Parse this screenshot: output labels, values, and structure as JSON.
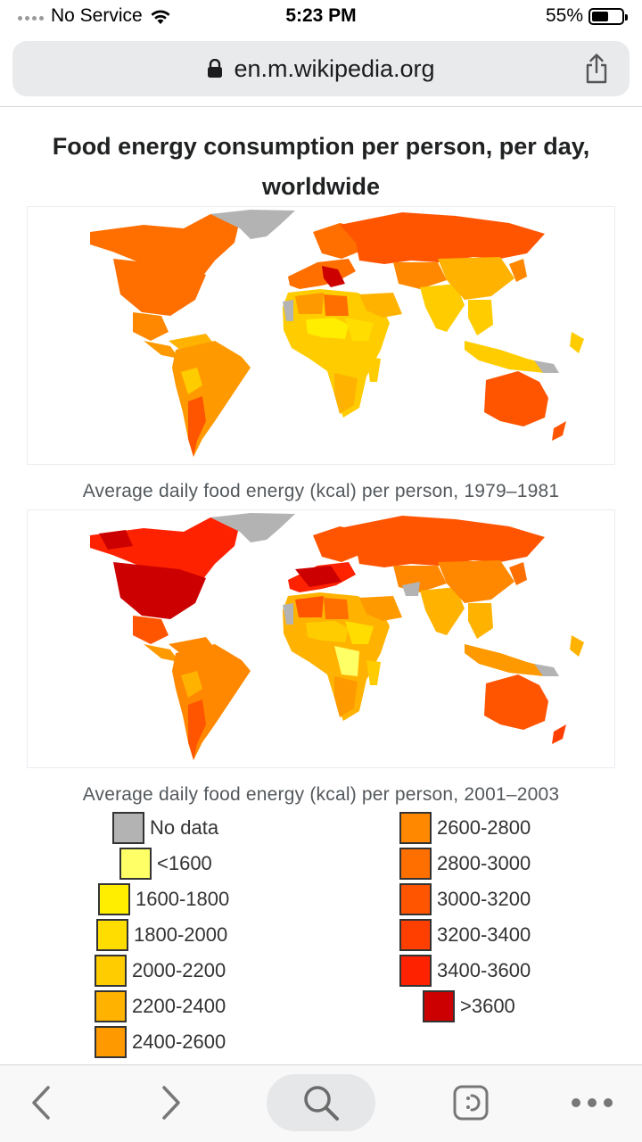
{
  "status_bar": {
    "carrier": "No Service",
    "time": "5:23 PM",
    "battery": "55%",
    "battery_level": 0.55
  },
  "browser": {
    "url": "en.m.wikipedia.org",
    "icons": {
      "lock": "lock-icon",
      "share": "share-icon",
      "back": "back-chevron-icon",
      "forward": "forward-chevron-icon",
      "search": "search-icon",
      "reader": "reader-mode-icon",
      "more": "more-dots-icon"
    }
  },
  "page": {
    "title": "Food energy consumption per person, per day, worldwide",
    "maps": [
      {
        "caption": "Average daily food energy (kcal) per person, 1979–1981"
      },
      {
        "caption": "Average daily food energy (kcal) per person, 2001–2003"
      }
    ]
  },
  "legend": {
    "left": [
      {
        "label": "No data",
        "color": "#b3b3b3"
      },
      {
        "label": "<1600",
        "color": "#ffff66"
      },
      {
        "label": "1600-1800",
        "color": "#ffee00"
      },
      {
        "label": "1800-2000",
        "color": "#ffdd00"
      },
      {
        "label": "2000-2200",
        "color": "#ffcc00"
      },
      {
        "label": "2200-2400",
        "color": "#ffb300"
      },
      {
        "label": "2400-2600",
        "color": "#ff9900"
      }
    ],
    "right": [
      {
        "label": "2600-2800",
        "color": "#ff8800"
      },
      {
        "label": "2800-3000",
        "color": "#ff6f00"
      },
      {
        "label": "3000-3200",
        "color": "#ff5500"
      },
      {
        "label": "3200-3400",
        "color": "#ff3f00"
      },
      {
        "label": "3400-3600",
        "color": "#ff2200"
      },
      {
        "label": ">3600",
        "color": "#cc0000"
      }
    ]
  }
}
